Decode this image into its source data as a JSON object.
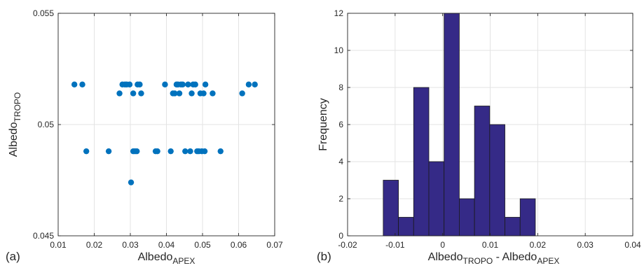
{
  "chart_data": [
    {
      "type": "scatter",
      "panel_label": "(a)",
      "xlabel": {
        "base": "Albedo",
        "sub": "APEX"
      },
      "ylabel": {
        "base": "Albedo",
        "sub": "TROPO"
      },
      "xlim": [
        0.01,
        0.07
      ],
      "ylim": [
        0.045,
        0.055
      ],
      "xticks": [
        0.01,
        0.02,
        0.03,
        0.04,
        0.05,
        0.06,
        0.07
      ],
      "xtick_labels": [
        "0.01",
        "0.02",
        "0.03",
        "0.04",
        "0.05",
        "0.06",
        "0.07"
      ],
      "yticks": [
        0.045,
        0.05,
        0.055
      ],
      "ytick_labels": [
        "0.045",
        "0.05",
        "0.055"
      ],
      "grid": true,
      "marker_color": "#0072BD",
      "points": [
        [
          0.0145,
          0.0518
        ],
        [
          0.0167,
          0.0518
        ],
        [
          0.0178,
          0.0488
        ],
        [
          0.024,
          0.0488
        ],
        [
          0.027,
          0.0514
        ],
        [
          0.0278,
          0.0518
        ],
        [
          0.0285,
          0.0518
        ],
        [
          0.029,
          0.0518
        ],
        [
          0.0298,
          0.0518
        ],
        [
          0.0302,
          0.0474
        ],
        [
          0.0308,
          0.0514
        ],
        [
          0.0308,
          0.0488
        ],
        [
          0.0313,
          0.0488
        ],
        [
          0.0318,
          0.0488
        ],
        [
          0.032,
          0.0518
        ],
        [
          0.0326,
          0.0518
        ],
        [
          0.033,
          0.0514
        ],
        [
          0.037,
          0.0488
        ],
        [
          0.0375,
          0.0488
        ],
        [
          0.0396,
          0.0518
        ],
        [
          0.0412,
          0.0488
        ],
        [
          0.0418,
          0.0514
        ],
        [
          0.0423,
          0.0514
        ],
        [
          0.0428,
          0.0518
        ],
        [
          0.0432,
          0.0518
        ],
        [
          0.0436,
          0.0514
        ],
        [
          0.044,
          0.0518
        ],
        [
          0.0445,
          0.0518
        ],
        [
          0.0452,
          0.0488
        ],
        [
          0.046,
          0.0518
        ],
        [
          0.0466,
          0.0488
        ],
        [
          0.047,
          0.0514
        ],
        [
          0.0474,
          0.0518
        ],
        [
          0.048,
          0.0518
        ],
        [
          0.0485,
          0.0488
        ],
        [
          0.049,
          0.0488
        ],
        [
          0.0494,
          0.0514
        ],
        [
          0.0498,
          0.0488
        ],
        [
          0.0503,
          0.0514
        ],
        [
          0.0506,
          0.0488
        ],
        [
          0.0508,
          0.0518
        ],
        [
          0.0528,
          0.0514
        ],
        [
          0.055,
          0.0488
        ],
        [
          0.061,
          0.0514
        ],
        [
          0.0628,
          0.0518
        ],
        [
          0.0645,
          0.0518
        ]
      ]
    },
    {
      "type": "bar",
      "subtype": "histogram",
      "panel_label": "(b)",
      "xlabel": {
        "base": "Albedo",
        "sub": "TROPO",
        "middle": " - Albedo",
        "sub2": "APEX"
      },
      "ylabel": {
        "base": "Frequency"
      },
      "xlim": [
        -0.02,
        0.04
      ],
      "ylim": [
        0,
        12
      ],
      "xticks": [
        -0.02,
        -0.01,
        0,
        0.01,
        0.02,
        0.03,
        0.04
      ],
      "xtick_labels": [
        "-0.02",
        "-0.01",
        "0",
        "0.01",
        "0.02",
        "0.03",
        "0.04"
      ],
      "yticks": [
        0,
        2,
        4,
        6,
        8,
        10,
        12
      ],
      "ytick_labels": [
        "0",
        "2",
        "4",
        "6",
        "8",
        "10",
        "12"
      ],
      "grid": true,
      "bar_color": "#352A87",
      "bin_edges": [
        -0.0125,
        -0.0093,
        -0.0061,
        -0.0029,
        0.0003,
        0.0035,
        0.0067,
        0.0099,
        0.0131,
        0.0163,
        0.0195,
        0.0227,
        0.0259,
        0.0291,
        0.0323,
        0.0355,
        0.0387
      ],
      "bins": [
        {
          "x0": -0.0125,
          "x1": -0.0093,
          "count": 3
        },
        {
          "x0": -0.0093,
          "x1": -0.0061,
          "count": 1
        },
        {
          "x0": -0.0061,
          "x1": -0.0029,
          "count": 8
        },
        {
          "x0": -0.0029,
          "x1": 0.0003,
          "count": 4
        },
        {
          "x0": 0.0003,
          "x1": 0.0035,
          "count": 12
        },
        {
          "x0": 0.0035,
          "x1": 0.0067,
          "count": 2
        },
        {
          "x0": 0.0067,
          "x1": 0.0099,
          "count": 7
        },
        {
          "x0": 0.0099,
          "x1": 0.0131,
          "count": 6
        },
        {
          "x0": 0.0131,
          "x1": 0.0163,
          "count": 1
        },
        {
          "x0": 0.0163,
          "x1": 0.0195,
          "count": 2
        }
      ]
    }
  ]
}
